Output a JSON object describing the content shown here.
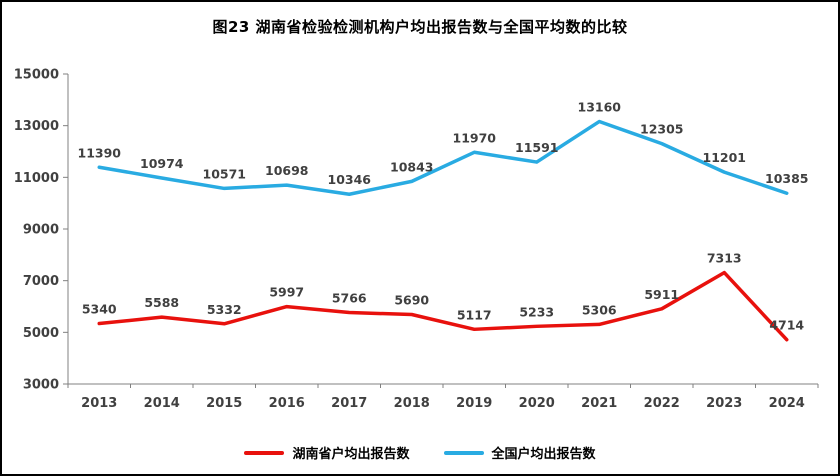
{
  "title": "图23  湖南省检验检测机构户均出报告数与全国平均数的比较",
  "chart_data": {
    "type": "line",
    "categories": [
      "2013",
      "2014",
      "2015",
      "2016",
      "2017",
      "2018",
      "2019",
      "2020",
      "2021",
      "2022",
      "2023",
      "2024"
    ],
    "series": [
      {
        "name": "湖南省户均出报告数",
        "color": "#e8110d",
        "values": [
          5340,
          5588,
          5332,
          5997,
          5766,
          5690,
          5117,
          5233,
          5306,
          5911,
          7313,
          4714
        ]
      },
      {
        "name": "全国户均出报告数",
        "color": "#29abe2",
        "values": [
          11390,
          10974,
          10571,
          10698,
          10346,
          10843,
          11970,
          11591,
          13160,
          12305,
          11201,
          10385
        ]
      }
    ],
    "ylim": [
      3000,
      15000
    ],
    "yticks": [
      3000,
      5000,
      7000,
      9000,
      11000,
      13000,
      15000
    ],
    "grid": false,
    "data_labels": true,
    "legend_position": "bottom",
    "axis_color": "#808080",
    "label_color": "#404040"
  }
}
